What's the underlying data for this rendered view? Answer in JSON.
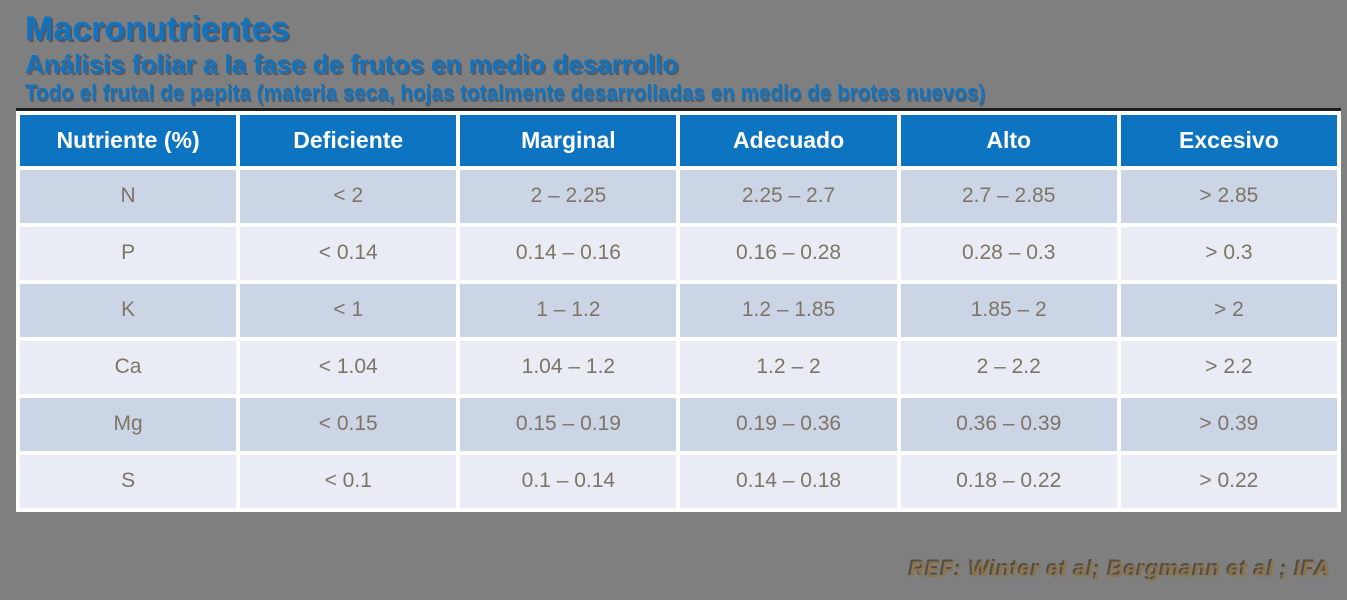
{
  "slide": {
    "title": "Macronutrientes",
    "subtitle": "Análisis foliar a la fase de frutos en medio desarrollo",
    "note": "Todo el frutal de pepita (materia seca, hojas totalmente desarrolladas en medio de brotes nuevos)",
    "reference": "REF: Winter et al; Bergmann et al ; IFA"
  },
  "colors": {
    "background": "#7f7f7f",
    "title_blue": "#1173bd",
    "header_blue": "#0d74c2",
    "row_dark": "#ccd5e5",
    "row_light": "#e9ecf4",
    "cell_text": "#7e7566",
    "header_text": "#ffffff",
    "reference_text": "#8b744f",
    "table_top_border": "#1d1d1d"
  },
  "chart_data": {
    "type": "table",
    "title": "Macronutrientes",
    "headers": [
      "Nutriente (%)",
      "Deficiente",
      "Marginal",
      "Adecuado",
      "Alto",
      "Excesivo"
    ],
    "rows": [
      [
        "N",
        "< 2",
        "2 – 2.25",
        "2.25 – 2.7",
        "2.7 – 2.85",
        "> 2.85"
      ],
      [
        "P",
        "< 0.14",
        "0.14 – 0.16",
        "0.16 – 0.28",
        "0.28 – 0.3",
        "> 0.3"
      ],
      [
        "K",
        "< 1",
        "1 – 1.2",
        "1.2 – 1.85",
        "1.85 – 2",
        "> 2"
      ],
      [
        "Ca",
        "< 1.04",
        "1.04 – 1.2",
        "1.2 – 2",
        "2 – 2.2",
        "> 2.2"
      ],
      [
        "Mg",
        "< 0.15",
        "0.15 – 0.19",
        "0.19 – 0.36",
        "0.36 – 0.39",
        "> 0.39"
      ],
      [
        "S",
        "< 0.1",
        "0.1 – 0.14",
        "0.14 – 0.18",
        "0.18 – 0.22",
        "> 0.22"
      ]
    ]
  }
}
